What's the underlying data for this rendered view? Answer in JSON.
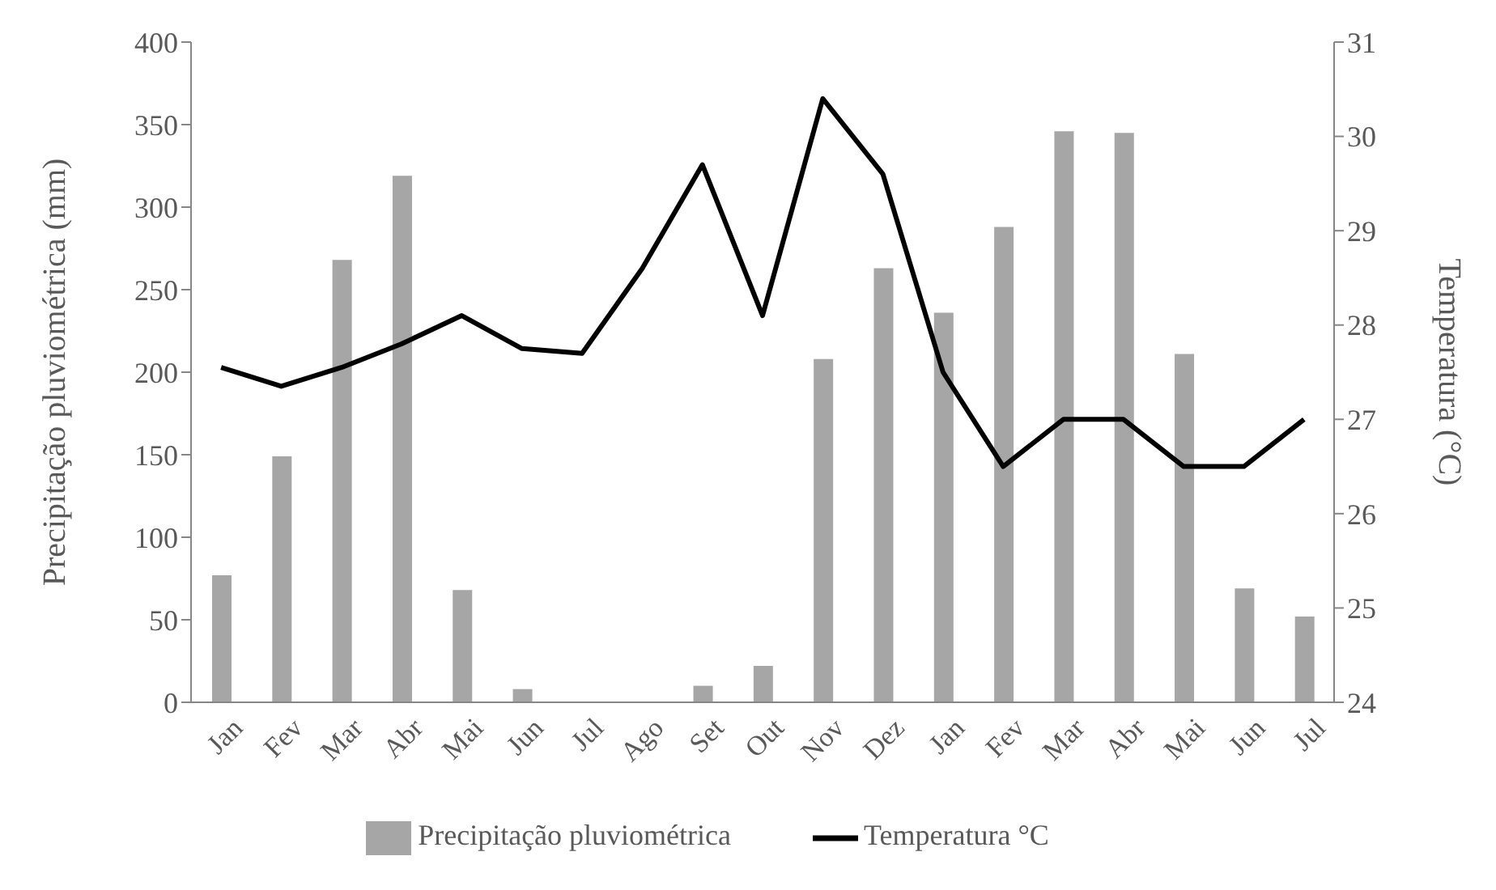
{
  "chart_data": {
    "type": "bar",
    "categories": [
      "Jan",
      "Fev",
      "Mar",
      "Abr",
      "Mai",
      "Jun",
      "Jul",
      "Ago",
      "Set",
      "Out",
      "Nov",
      "Dez",
      "Jan",
      "Fev",
      "Mar",
      "Abr",
      "Mai",
      "Jun",
      "Jul"
    ],
    "series": [
      {
        "name": "Precipitação pluviométrica",
        "color": "#a6a6a6",
        "values": [
          77,
          149,
          268,
          319,
          68,
          8,
          0,
          0,
          10,
          22,
          208,
          263,
          236,
          288,
          346,
          345,
          211,
          69,
          52
        ]
      },
      {
        "name": "Temperatura °C",
        "type": "line",
        "axis": "y2",
        "color": "#000000",
        "values": [
          27.55,
          27.35,
          27.55,
          27.8,
          28.1,
          27.75,
          27.7,
          28.6,
          29.7,
          28.1,
          30.4,
          29.6,
          27.5,
          26.5,
          27,
          27,
          26.5,
          26.5,
          27
        ]
      }
    ],
    "ylabel": "Precipitação pluviométrica (mm)",
    "y2label": "Temperatura (°C)",
    "ylim": [
      0,
      400
    ],
    "yticks": [
      0,
      50,
      100,
      150,
      200,
      250,
      300,
      350,
      400
    ],
    "y2lim": [
      24,
      31
    ],
    "y2ticks": [
      24,
      25,
      26,
      27,
      28,
      29,
      30,
      31
    ],
    "grid": false,
    "legend": "bottom",
    "marker": "none"
  }
}
